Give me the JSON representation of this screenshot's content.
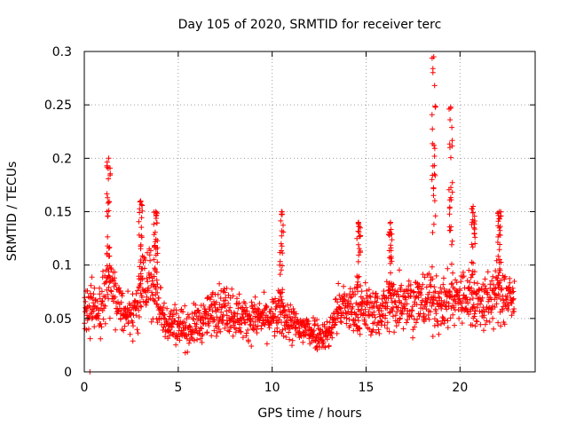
{
  "chart_data": {
    "type": "scatter",
    "title": "Day 105 of 2020, SRMTID for receiver terc",
    "xlabel": "GPS time / hours",
    "ylabel": "SRMTID / TECUs",
    "xlim": [
      0,
      24
    ],
    "ylim": [
      0,
      0.3
    ],
    "grid": true,
    "marker": "+",
    "series_color": "#ff0000",
    "x_ticks": [
      0,
      5,
      10,
      15,
      20
    ],
    "x_tick_labels": [
      "0",
      "5",
      "10",
      "15",
      "20"
    ],
    "y_ticks": [
      0,
      0.05,
      0.1,
      0.15,
      0.2,
      0.25,
      0.3
    ],
    "y_tick_labels": [
      "0",
      "0.05",
      "0.1",
      "0.15",
      "0.2",
      "0.25",
      "0.3"
    ],
    "envelope": {
      "description": "approximate median level and spread of the scattered samples read off the figure",
      "time_hours": [
        0.0,
        0.3,
        0.7,
        1.0,
        1.3,
        1.6,
        2.0,
        2.5,
        2.9,
        3.2,
        3.6,
        4.0,
        4.5,
        5.0,
        5.5,
        6.0,
        6.5,
        7.0,
        7.5,
        8.0,
        8.5,
        9.0,
        9.5,
        10.0,
        10.5,
        11.0,
        11.5,
        12.0,
        12.5,
        13.0,
        13.5,
        14.0,
        14.5,
        15.0,
        15.5,
        16.0,
        16.5,
        17.0,
        17.5,
        18.0,
        18.5,
        19.0,
        19.5,
        20.0,
        20.5,
        21.0,
        21.5,
        22.0,
        22.5,
        22.9
      ],
      "center": [
        0.055,
        0.06,
        0.055,
        0.06,
        0.08,
        0.075,
        0.06,
        0.055,
        0.065,
        0.08,
        0.085,
        0.06,
        0.045,
        0.045,
        0.04,
        0.045,
        0.05,
        0.06,
        0.06,
        0.055,
        0.05,
        0.05,
        0.05,
        0.05,
        0.055,
        0.045,
        0.04,
        0.04,
        0.035,
        0.035,
        0.06,
        0.06,
        0.055,
        0.06,
        0.055,
        0.06,
        0.065,
        0.07,
        0.065,
        0.065,
        0.07,
        0.06,
        0.07,
        0.07,
        0.07,
        0.065,
        0.065,
        0.075,
        0.07,
        0.065
      ],
      "spread": [
        0.025,
        0.03,
        0.025,
        0.03,
        0.035,
        0.03,
        0.025,
        0.025,
        0.03,
        0.035,
        0.035,
        0.025,
        0.02,
        0.02,
        0.02,
        0.02,
        0.02,
        0.025,
        0.025,
        0.025,
        0.02,
        0.02,
        0.02,
        0.02,
        0.025,
        0.02,
        0.02,
        0.018,
        0.015,
        0.015,
        0.025,
        0.025,
        0.025,
        0.025,
        0.025,
        0.03,
        0.03,
        0.03,
        0.03,
        0.03,
        0.03,
        0.025,
        0.03,
        0.03,
        0.03,
        0.03,
        0.03,
        0.03,
        0.03,
        0.025
      ],
      "sample_count": 1600
    },
    "bursts": [
      {
        "time_hours": 1.3,
        "peak": 0.2
      },
      {
        "time_hours": 3.0,
        "peak": 0.16
      },
      {
        "time_hours": 3.8,
        "peak": 0.15
      },
      {
        "time_hours": 10.5,
        "peak": 0.15
      },
      {
        "time_hours": 14.6,
        "peak": 0.14
      },
      {
        "time_hours": 16.3,
        "peak": 0.14
      },
      {
        "time_hours": 18.6,
        "peak": 0.295
      },
      {
        "time_hours": 19.5,
        "peak": 0.248
      },
      {
        "time_hours": 20.7,
        "peak": 0.155
      },
      {
        "time_hours": 22.1,
        "peak": 0.15
      }
    ]
  }
}
